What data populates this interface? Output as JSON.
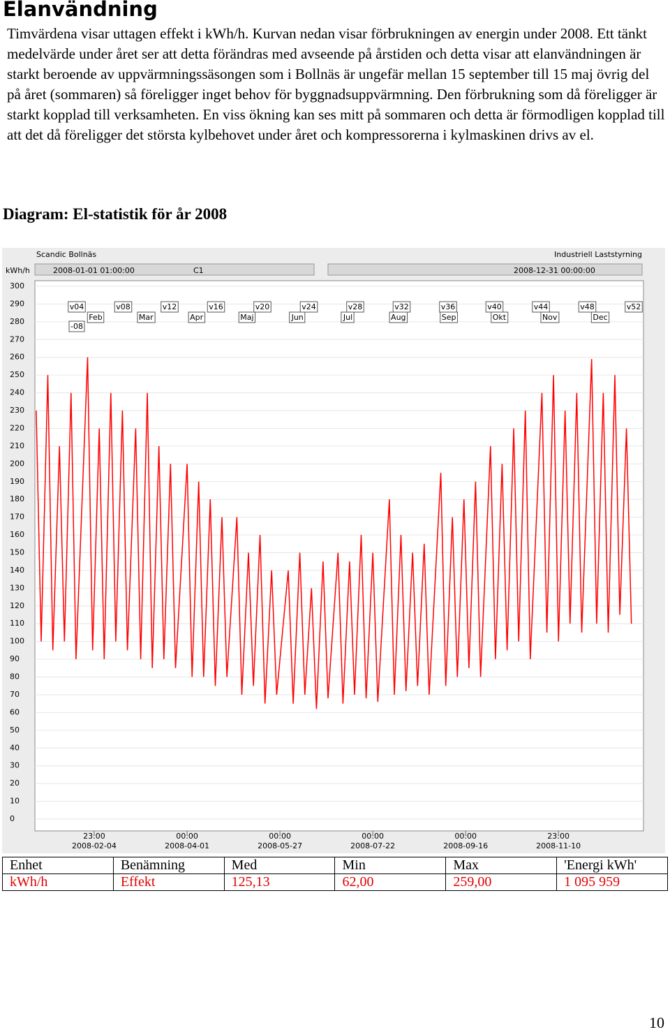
{
  "heading": "Elanvändning",
  "paragraph": "Timvärdena visar uttagen effekt i kWh/h. Kurvan nedan visar förbrukningen av energin under 2008. Ett tänkt medelvärde under året ser att detta förändras med avseende på årstiden och detta visar att elanvändningen är starkt beroende av uppvärmningssäsongen som i Bollnäs är ungefär mellan 15 september till 15 maj övrig del på året (sommaren) så föreligger inget behov för byggnadsuppvärmning. Den förbrukning som då föreligger är starkt kopplad till verksamheten. En viss ökning kan ses mitt på sommaren och detta är förmodligen kopplad till att det då föreligger det största kylbehovet under året och kompressorerna i kylmaskinen drivs av el.",
  "caption": "Diagram: El-statistik för år 2008",
  "chart_data": {
    "type": "line",
    "title": "Scandic Bollnäs",
    "subtitle": "Industriell Laststyrning",
    "y_label": "kWh/h",
    "range_start": "2008-01-01 01:00:00",
    "channel": "C1",
    "range_end": "2008-12-31 00:00:00",
    "week_markers": [
      "v04",
      "v08",
      "v12",
      "v16",
      "v20",
      "v24",
      "v28",
      "v32",
      "v36",
      "v40",
      "v44",
      "v48",
      "v52"
    ],
    "year_marker": "-08",
    "month_markers": [
      "Feb",
      "Mar",
      "Apr",
      "Maj",
      "Jun",
      "Jul",
      "Aug",
      "Sep",
      "Okt",
      "Nov",
      "Dec"
    ],
    "xlim": [
      "2008-01-01 01:00",
      "2008-12-31 00:00"
    ],
    "xticks": [
      {
        "value": "2008-02-04 23:00",
        "label": "23:00\n2008-02-04"
      },
      {
        "value": "2008-04-01 00:00",
        "label": "00:00\n2008-04-01"
      },
      {
        "value": "2008-05-27 00:00",
        "label": "00:00\n2008-05-27"
      },
      {
        "value": "2008-07-22 00:00",
        "label": "00:00\n2008-07-22"
      },
      {
        "value": "2008-09-16 00:00",
        "label": "00:00\n2008-09-16"
      },
      {
        "value": "2008-11-10 23:00",
        "label": "23:00\n2008-11-10"
      }
    ],
    "ylim": [
      0,
      300
    ],
    "yticks": [
      0,
      10,
      20,
      30,
      40,
      50,
      60,
      70,
      80,
      90,
      100,
      110,
      120,
      130,
      140,
      150,
      160,
      170,
      180,
      190,
      200,
      210,
      220,
      230,
      240,
      250,
      260,
      270,
      280,
      290,
      300
    ],
    "grid": true,
    "series": [
      {
        "color": "#ff0000",
        "x": [
          "2008-01-01",
          "2008-01-04",
          "2008-01-08",
          "2008-01-11",
          "2008-01-15",
          "2008-01-18",
          "2008-01-22",
          "2008-01-25",
          "2008-02-01",
          "2008-02-04",
          "2008-02-08",
          "2008-02-11",
          "2008-02-15",
          "2008-02-18",
          "2008-02-22",
          "2008-02-25",
          "2008-03-01",
          "2008-03-04",
          "2008-03-08",
          "2008-03-11",
          "2008-03-15",
          "2008-03-18",
          "2008-03-22",
          "2008-03-25",
          "2008-04-01",
          "2008-04-04",
          "2008-04-08",
          "2008-04-11",
          "2008-04-15",
          "2008-04-18",
          "2008-04-22",
          "2008-04-25",
          "2008-05-01",
          "2008-05-04",
          "2008-05-08",
          "2008-05-11",
          "2008-05-15",
          "2008-05-18",
          "2008-05-22",
          "2008-05-25",
          "2008-06-01",
          "2008-06-04",
          "2008-06-08",
          "2008-06-11",
          "2008-06-15",
          "2008-06-18",
          "2008-06-22",
          "2008-06-25",
          "2008-07-01",
          "2008-07-04",
          "2008-07-08",
          "2008-07-11",
          "2008-07-15",
          "2008-07-18",
          "2008-07-22",
          "2008-07-25",
          "2008-08-01",
          "2008-08-04",
          "2008-08-08",
          "2008-08-11",
          "2008-08-15",
          "2008-08-18",
          "2008-08-22",
          "2008-08-25",
          "2008-09-01",
          "2008-09-04",
          "2008-09-08",
          "2008-09-11",
          "2008-09-15",
          "2008-09-18",
          "2008-09-22",
          "2008-09-25",
          "2008-10-01",
          "2008-10-04",
          "2008-10-08",
          "2008-10-11",
          "2008-10-15",
          "2008-10-18",
          "2008-10-22",
          "2008-10-25",
          "2008-11-01",
          "2008-11-04",
          "2008-11-08",
          "2008-11-11",
          "2008-11-15",
          "2008-11-18",
          "2008-11-22",
          "2008-11-25",
          "2008-12-01",
          "2008-12-04",
          "2008-12-08",
          "2008-12-11",
          "2008-12-15",
          "2008-12-18",
          "2008-12-22",
          "2008-12-25"
        ],
        "values": [
          230,
          100,
          250,
          95,
          210,
          100,
          240,
          90,
          260,
          95,
          220,
          90,
          240,
          100,
          230,
          95,
          220,
          90,
          240,
          85,
          210,
          90,
          200,
          85,
          200,
          80,
          190,
          80,
          180,
          75,
          170,
          80,
          170,
          70,
          150,
          75,
          160,
          65,
          140,
          70,
          140,
          65,
          150,
          70,
          130,
          62,
          145,
          68,
          150,
          65,
          145,
          70,
          160,
          68,
          150,
          66,
          180,
          70,
          160,
          72,
          150,
          75,
          155,
          70,
          195,
          75,
          170,
          80,
          180,
          85,
          190,
          80,
          210,
          90,
          200,
          95,
          220,
          100,
          230,
          90,
          240,
          105,
          250,
          100,
          230,
          110,
          240,
          105,
          259,
          110,
          240,
          105,
          250,
          115,
          220,
          110
        ]
      }
    ]
  },
  "table": {
    "rows": [
      [
        "Enhet",
        "Benämning",
        "Med",
        "Min",
        "Max",
        "'Energi kWh'"
      ],
      [
        "kWh/h",
        "Effekt",
        "125,13",
        "62,00",
        "259,00",
        "1 095 959"
      ]
    ]
  },
  "page_number": "10"
}
